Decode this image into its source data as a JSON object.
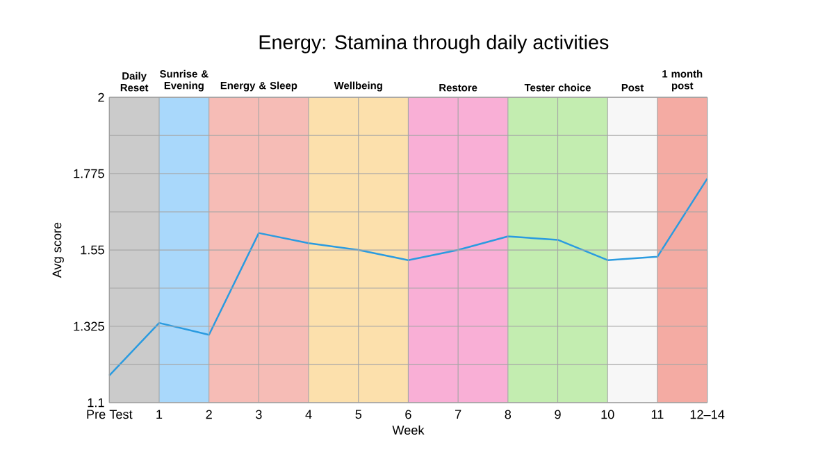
{
  "chart_data": {
    "type": "line",
    "title": "Energy: Stamina through daily activities",
    "xlabel": "Week",
    "ylabel": "Avg score",
    "categories": [
      "Pre Test",
      "1",
      "2",
      "3",
      "4",
      "5",
      "6",
      "7",
      "8",
      "9",
      "10",
      "11",
      "12–14"
    ],
    "series": [
      {
        "color": "#2a9be0",
        "values": [
          1.18,
          1.335,
          1.3,
          1.6,
          1.57,
          1.55,
          1.52,
          1.55,
          1.59,
          1.58,
          1.52,
          1.53,
          1.76
        ]
      }
    ],
    "ylim": [
      1.1,
      2
    ],
    "yticks": [
      1.1,
      {
        "value": 1.2125,
        "label": null
      },
      1.325,
      {
        "value": 1.4375,
        "label": null
      },
      1.55,
      {
        "value": 1.6625,
        "label": null
      },
      1.775,
      {
        "value": 1.8875,
        "label": null
      },
      2
    ],
    "grid": true,
    "marker": "none",
    "line_style": "solid",
    "bands": [
      {
        "axis": "x",
        "from": "Pre Test",
        "to": "1",
        "label": "Daily Reset",
        "color": "#cbcbcb"
      },
      {
        "axis": "x",
        "from": "1",
        "to": "2",
        "label": "Sunrise & Evening",
        "color": "#a9d8fb"
      },
      {
        "axis": "x",
        "from": "2",
        "to": "4",
        "label": "Energy & Sleep",
        "color": "#f6bcb6"
      },
      {
        "axis": "x",
        "from": "4",
        "to": "6",
        "label": "Wellbeing",
        "color": "#fce0ac"
      },
      {
        "axis": "x",
        "from": "6",
        "to": "8",
        "label": "Restore",
        "color": "#f9afd6"
      },
      {
        "axis": "x",
        "from": "8",
        "to": "10",
        "label": "Tester choice",
        "color": "#c3edb0"
      },
      {
        "axis": "x",
        "from": "10",
        "to": "11",
        "label": "Post",
        "color": "#f7f7f7"
      },
      {
        "axis": "x",
        "from": "11",
        "to": "12–14",
        "label": "1 month post",
        "color": "#f4aba3"
      }
    ]
  }
}
